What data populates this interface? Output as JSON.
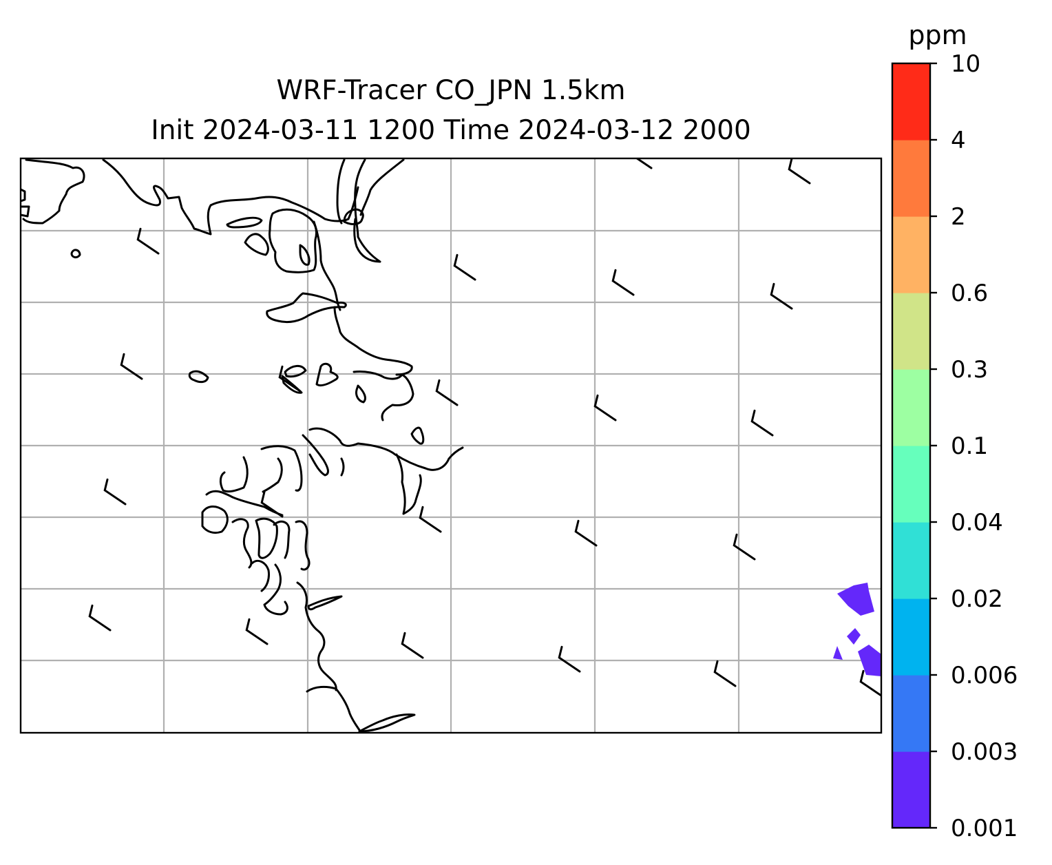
{
  "title": {
    "line1": "WRF-Tracer CO_JPN 1.5km",
    "line2": "Init 2024-03-11 1200 Time 2024-03-12 2000"
  },
  "colorbar": {
    "unit": "ppm",
    "levels": [
      "0.001",
      "0.003",
      "0.006",
      "0.02",
      "0.04",
      "0.1",
      "0.3",
      "0.6",
      "2",
      "4",
      "10"
    ],
    "colors": [
      "#6428fa",
      "#3578f5",
      "#00b3ef",
      "#30e0d6",
      "#66ffbc",
      "#9dffa2",
      "#d0e488",
      "#ffb263",
      "#ff7a3c",
      "#ff2b18"
    ]
  },
  "map": {
    "gridline_color": "#b0b0b0",
    "coastline_color": "#000000",
    "tracer_fill_color": "#6428fa",
    "tracer_level": "0.001"
  }
}
